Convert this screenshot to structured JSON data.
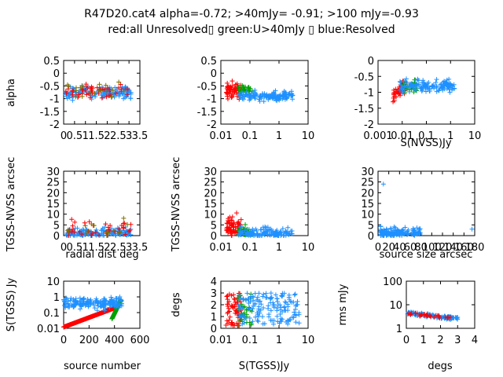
{
  "title_line1": "R47D20.cat4 alpha=-0.72; >40mJy= -0.91; >100 mJy=-0.93",
  "title_line2": "red:all Unresolved▯ green:U>40mJy ▯ blue:Resolved",
  "colors": {
    "red": "#ff0000",
    "green": "#00a000",
    "blue": "#1e90ff",
    "olive": "#7f6f00"
  },
  "chart_data": [
    {
      "type": "scatter",
      "id": "p1",
      "xscale": "linear",
      "xlim": [
        0,
        3.5
      ],
      "xticks": [
        "0",
        "0.5",
        "1",
        "1.5",
        "2",
        "2.5",
        "3",
        "3.5"
      ],
      "ylim": [
        -2,
        0.5
      ],
      "yticks": [
        "-2",
        "-1.5",
        "-1",
        "-0.5",
        "0",
        "0.5"
      ],
      "xlabel": "",
      "ylabel": "alpha"
    },
    {
      "type": "scatter",
      "id": "p2",
      "xscale": "log",
      "xlim": [
        0.01,
        10
      ],
      "xticks": [
        "0.01",
        "0.1",
        "1",
        "10"
      ],
      "ylim": [
        -2,
        0.5
      ],
      "yticks": [
        "-2",
        "-1.5",
        "-1",
        "-0.5",
        "0",
        "0.5"
      ],
      "xlabel": "",
      "ylabel": ""
    },
    {
      "type": "scatter",
      "id": "p3",
      "xscale": "log",
      "xlim": [
        0.001,
        10
      ],
      "xticks": [
        "0.001",
        "0.01",
        "0.1",
        "1",
        "10"
      ],
      "ylim": [
        -2,
        0
      ],
      "yticks": [
        "-2",
        "-1.5",
        "-1",
        "-0.5",
        "0"
      ],
      "xlabel": "S(NVSS)Jy",
      "ylabel": ""
    },
    {
      "type": "scatter",
      "id": "p4",
      "xscale": "linear",
      "xlim": [
        0,
        3.5
      ],
      "xticks": [
        "0",
        "0.5",
        "1",
        "1.5",
        "2",
        "2.5",
        "3",
        "3.5"
      ],
      "ylim": [
        0,
        30
      ],
      "yticks": [
        "0",
        "5",
        "10",
        "15",
        "20",
        "25",
        "30"
      ],
      "xlabel": "radial dist deg",
      "ylabel": "TGSS-NVSS arcsec"
    },
    {
      "type": "scatter",
      "id": "p5",
      "xscale": "log",
      "xlim": [
        0.01,
        10
      ],
      "xticks": [
        "0.01",
        "0.1",
        "1",
        "10"
      ],
      "ylim": [
        0,
        30
      ],
      "yticks": [
        "0",
        "5",
        "10",
        "15",
        "20",
        "25",
        "30"
      ],
      "xlabel": "",
      "ylabel": "TGSS-NVSS arcsec"
    },
    {
      "type": "scatter",
      "id": "p6",
      "xscale": "linear",
      "xlim": [
        0,
        180
      ],
      "xticks": [
        "0",
        "20",
        "40",
        "60",
        "80",
        "100",
        "120",
        "140",
        "160",
        "180"
      ],
      "ylim": [
        0,
        30
      ],
      "yticks": [
        "0",
        "5",
        "10",
        "15",
        "20",
        "25",
        "30"
      ],
      "xlabel": "source size arcsec",
      "ylabel": ""
    },
    {
      "type": "scatter",
      "id": "p7",
      "xscale": "linear",
      "xlim": [
        0,
        600
      ],
      "xticks": [
        "0",
        "200",
        "400",
        "600"
      ],
      "yscale": "log",
      "ylim": [
        0.01,
        10
      ],
      "yticks": [
        "0.01",
        "0.1",
        "1",
        "10"
      ],
      "xlabel": "source number",
      "ylabel": "S(TGSS) Jy"
    },
    {
      "type": "scatter",
      "id": "p8",
      "xscale": "log",
      "xlim": [
        0.01,
        10
      ],
      "xticks": [
        "0.01",
        "0.1",
        "1",
        "10"
      ],
      "ylim": [
        0,
        4
      ],
      "yticks": [
        "0",
        "1",
        "2",
        "3",
        "4"
      ],
      "xlabel": "S(TGSS)Jy",
      "ylabel": "degs"
    },
    {
      "type": "scatter",
      "id": "p9",
      "xscale": "linear",
      "xlim": [
        0,
        4
      ],
      "xticks": [
        "0",
        "1",
        "2",
        "3",
        "4"
      ],
      "yscale": "log",
      "ylim": [
        1,
        100
      ],
      "yticks": [
        "1",
        "10",
        "100"
      ],
      "xlabel": "degs",
      "ylabel": "rms mJy"
    }
  ]
}
